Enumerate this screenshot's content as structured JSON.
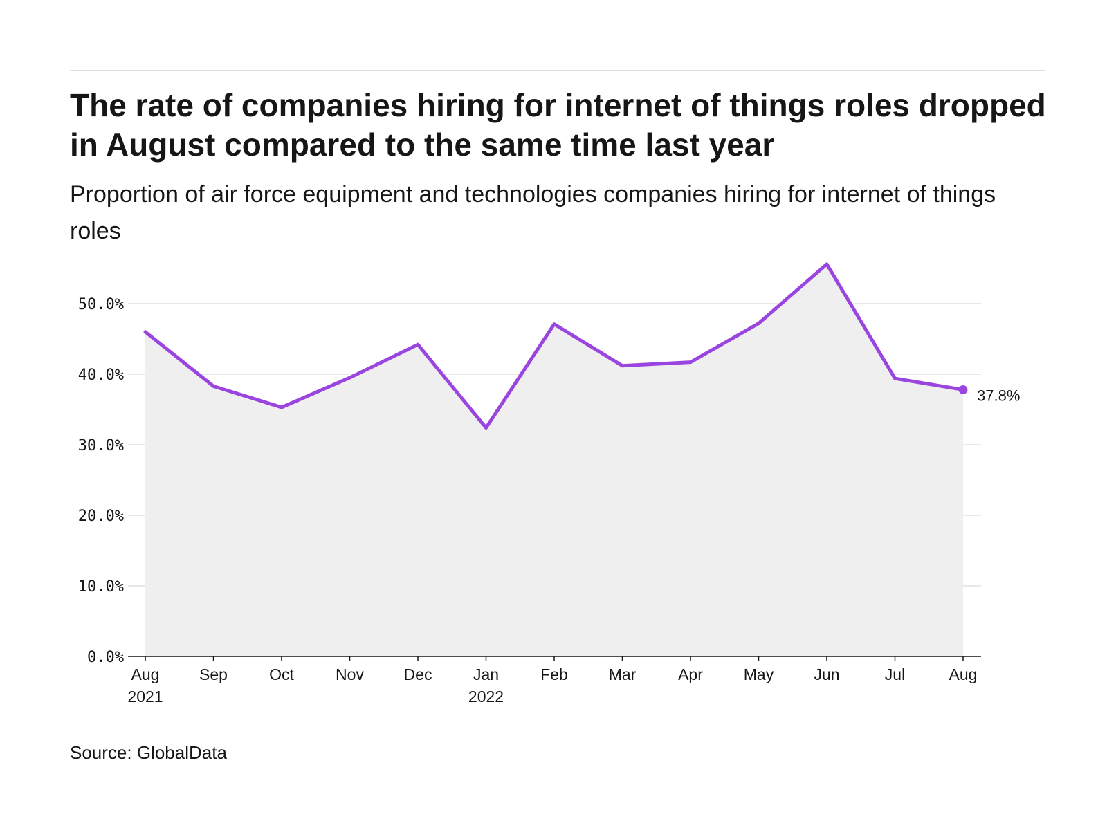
{
  "header": {
    "title": "The rate of companies hiring for internet of things roles dropped in August compared to the same time last year",
    "subtitle": "Proportion of air force equipment and technologies companies hiring for internet of things roles"
  },
  "footer": {
    "source": "Source: GlobalData"
  },
  "colors": {
    "line": "#9b45e0",
    "area": "#efefef",
    "grid": "#e0e0e0",
    "axis": "#161616"
  },
  "chart_data": {
    "type": "area",
    "categories": [
      "Aug 2021",
      "Sep",
      "Oct",
      "Nov",
      "Dec",
      "Jan 2022",
      "Feb",
      "Mar",
      "Apr",
      "May",
      "Jun",
      "Jul",
      "Aug"
    ],
    "x_tick_labels": [
      [
        "Aug",
        "2021"
      ],
      [
        "Sep"
      ],
      [
        "Oct"
      ],
      [
        "Nov"
      ],
      [
        "Dec"
      ],
      [
        "Jan",
        "2022"
      ],
      [
        "Feb"
      ],
      [
        "Mar"
      ],
      [
        "Apr"
      ],
      [
        "May"
      ],
      [
        "Jun"
      ],
      [
        "Jul"
      ],
      [
        "Aug"
      ]
    ],
    "values": [
      46.0,
      38.3,
      35.3,
      39.5,
      44.2,
      32.4,
      47.1,
      41.2,
      41.7,
      47.2,
      55.6,
      39.4,
      37.8
    ],
    "ylim": [
      0,
      55.6
    ],
    "yticks": [
      0,
      10,
      20,
      30,
      40,
      50
    ],
    "ytick_labels": [
      "0.0%",
      "10.0%",
      "20.0%",
      "30.0%",
      "40.0%",
      "50.0%"
    ],
    "end_label": "37.8%",
    "grid": true,
    "legend": "none",
    "xlabel": "",
    "ylabel": ""
  }
}
